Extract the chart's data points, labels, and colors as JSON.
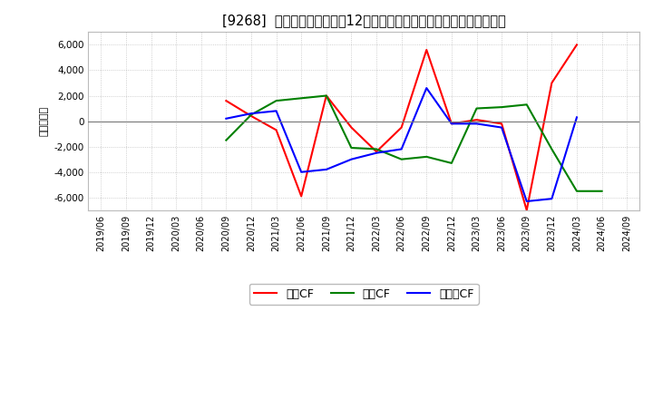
{
  "title": "[9268]  キャッシュフローの12か月移動合計の対前年同期増減額の推移",
  "ylabel": "（百万円）",
  "background_color": "#ffffff",
  "plot_bg_color": "#ffffff",
  "grid_color": "#aaaaaa",
  "ylim": [
    -7000,
    7000
  ],
  "yticks": [
    -6000,
    -4000,
    -2000,
    0,
    2000,
    4000,
    6000
  ],
  "x_labels": [
    "2019/06",
    "2019/09",
    "2019/12",
    "2020/03",
    "2020/06",
    "2020/09",
    "2020/12",
    "2021/03",
    "2021/06",
    "2021/09",
    "2021/12",
    "2022/03",
    "2022/06",
    "2022/09",
    "2022/12",
    "2023/03",
    "2023/06",
    "2023/09",
    "2023/12",
    "2024/03",
    "2024/06",
    "2024/09"
  ],
  "legend_labels": [
    "営業CF",
    "投資CF",
    "フリーCF"
  ],
  "series": {
    "営業CF": {
      "color": "#ff0000",
      "data_x": [
        "2020/09",
        "2020/12",
        "2021/03",
        "2021/06",
        "2021/09",
        "2021/12",
        "2022/03",
        "2022/06",
        "2022/09",
        "2022/12",
        "2023/03",
        "2023/06",
        "2023/09",
        "2023/12",
        "2024/03"
      ],
      "data_y": [
        1600,
        400,
        -700,
        -5900,
        2000,
        -500,
        -2400,
        -500,
        5600,
        -200,
        100,
        -200,
        -7000,
        3000,
        6000
      ]
    },
    "投資CF": {
      "color": "#008000",
      "data_x": [
        "2020/09",
        "2020/12",
        "2021/03",
        "2021/06",
        "2021/09",
        "2021/12",
        "2022/03",
        "2022/06",
        "2022/09",
        "2022/12",
        "2023/03",
        "2023/06",
        "2023/09",
        "2023/12",
        "2024/03",
        "2024/06"
      ],
      "data_y": [
        -1500,
        500,
        1600,
        1800,
        2000,
        -2100,
        -2200,
        -3000,
        -2800,
        -3300,
        1000,
        1100,
        1300,
        -2200,
        -5500,
        -5500
      ]
    },
    "フリーCF": {
      "color": "#0000ff",
      "data_x": [
        "2020/09",
        "2020/12",
        "2021/03",
        "2021/06",
        "2021/09",
        "2021/12",
        "2022/03",
        "2022/06",
        "2022/09",
        "2022/12",
        "2023/03",
        "2023/06",
        "2023/09",
        "2023/12",
        "2024/03"
      ],
      "data_y": [
        200,
        600,
        800,
        -4000,
        -3800,
        -3000,
        -2500,
        -2200,
        2600,
        -200,
        -200,
        -500,
        -6300,
        -6100,
        300
      ]
    }
  }
}
